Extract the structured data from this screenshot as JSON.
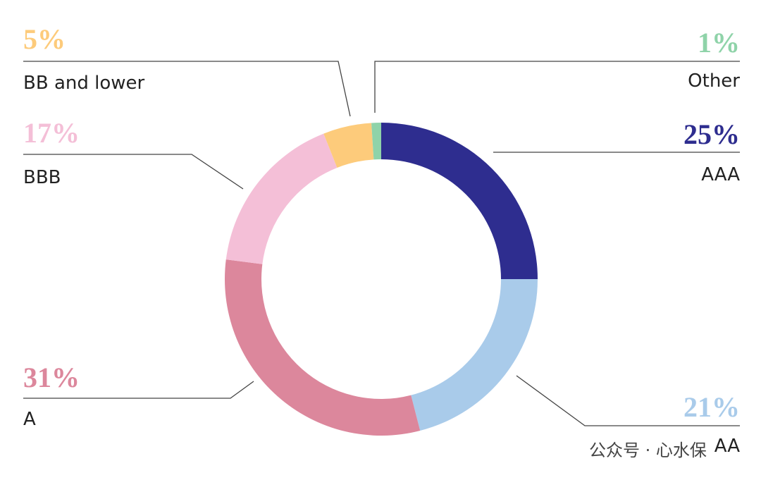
{
  "chart_data": {
    "type": "donut",
    "categories": [
      "AAA",
      "AA",
      "A",
      "BBB",
      "BB and lower",
      "Other"
    ],
    "values": [
      25,
      21,
      31,
      17,
      5,
      1
    ],
    "value_labels": [
      "25%",
      "21%",
      "31%",
      "17%",
      "5%",
      "1%"
    ],
    "colors": [
      "#2e2d8f",
      "#a9cbea",
      "#dc879c",
      "#f4bfd7",
      "#fdcb7b",
      "#8fd3a9"
    ],
    "watermark": "公众号 · 心水保"
  }
}
